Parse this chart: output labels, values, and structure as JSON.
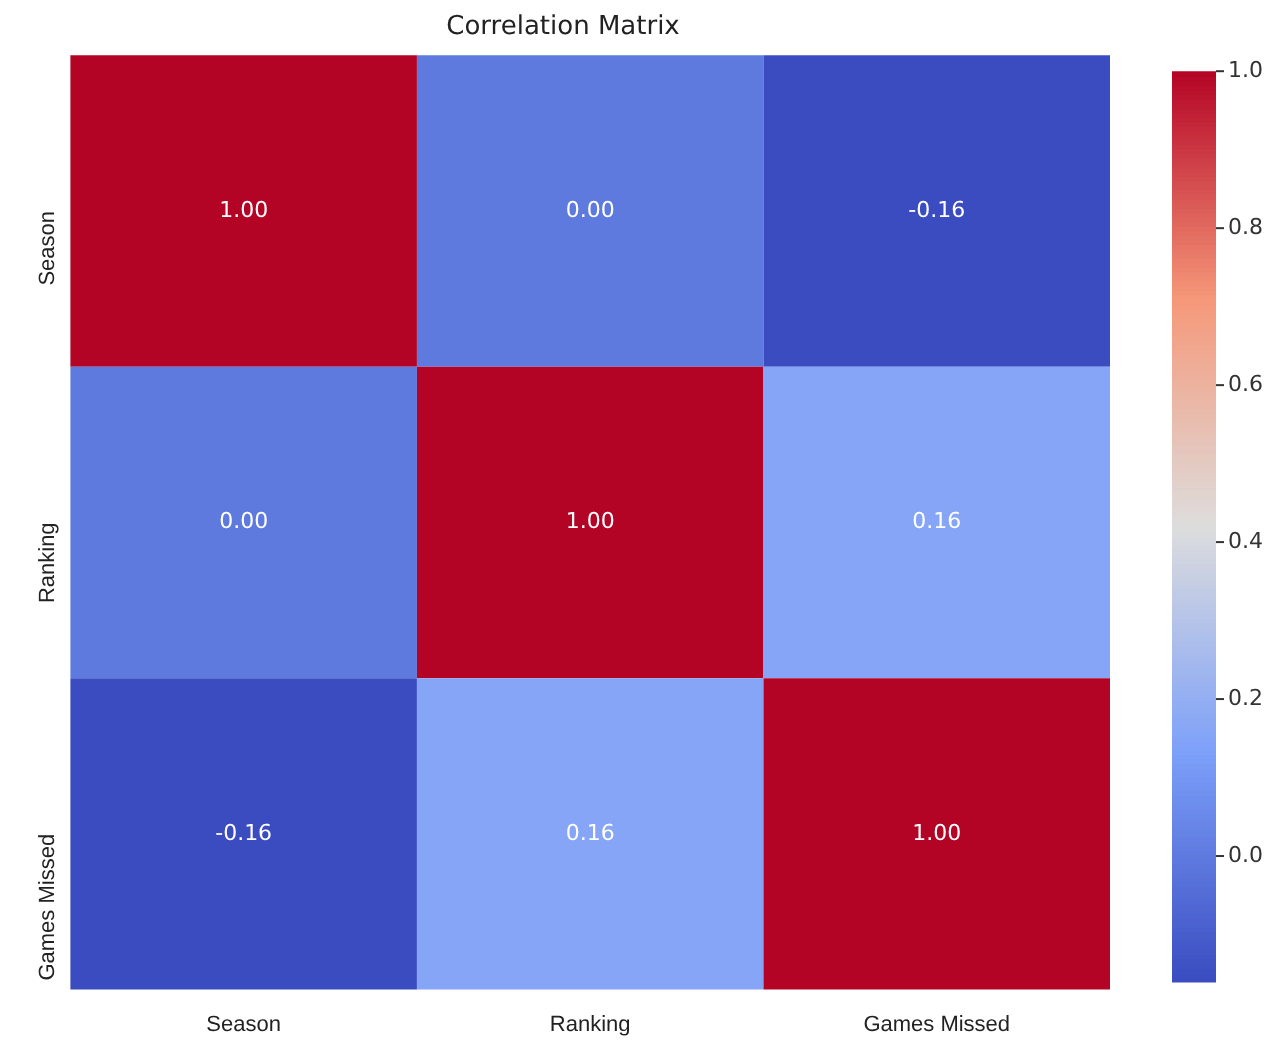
{
  "chart_data": {
    "type": "heatmap",
    "title": "Correlation Matrix",
    "categories": [
      "Season",
      "Ranking",
      "Games Missed"
    ],
    "y_categories": [
      "Season",
      "Ranking",
      "Games Missed"
    ],
    "cells": [
      [
        1,
        0,
        -0.16
      ],
      [
        0,
        1,
        0.16
      ],
      [
        -0.16,
        0.16,
        1
      ]
    ],
    "cell_labels": [
      [
        "1.00",
        "0.00",
        "-0.16"
      ],
      [
        "0.00",
        "1.00",
        "0.16"
      ],
      [
        "-0.16",
        "0.16",
        "1.00"
      ]
    ],
    "clim": [
      -0.16,
      1
    ],
    "cticks": [
      {
        "value": 0,
        "label": "0.0"
      },
      {
        "value": 0.2,
        "label": "0.2"
      },
      {
        "value": 0.4,
        "label": "0.4"
      },
      {
        "value": 0.6,
        "label": "0.6"
      },
      {
        "value": 0.8,
        "label": "0.8"
      },
      {
        "value": 1,
        "label": "1.0"
      }
    ]
  }
}
